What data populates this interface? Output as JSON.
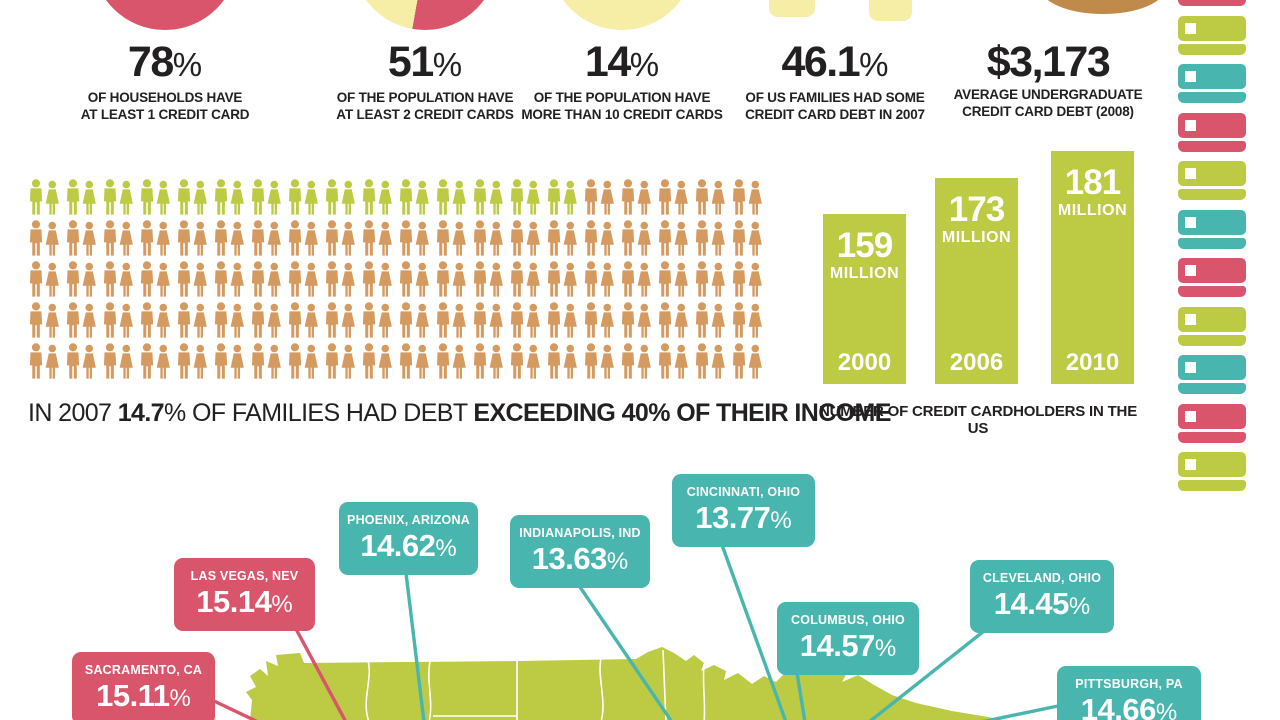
{
  "colors": {
    "red": "#d9556b",
    "teal": "#48b6af",
    "lime": "#bdca43",
    "pale_yellow": "#f6eda6",
    "orange": "#d49a60",
    "brown": "#bf8a4a",
    "ink": "#232021",
    "white": "#ffffff"
  },
  "top_stats": [
    {
      "icon": "pie-full-red",
      "value": "78%",
      "lines": [
        "OF HOUSEHOLDS HAVE",
        "AT LEAST 1 CREDIT CARD"
      ]
    },
    {
      "icon": "pie-yellow-red",
      "value": "51%",
      "lines": [
        "OF THE POPULATION HAVE",
        "AT LEAST 2 CREDIT CARDS"
      ]
    },
    {
      "icon": "pie-full-yellow",
      "value": "14%",
      "lines": [
        "OF THE POPULATION HAVE",
        "MORE THAN 10 CREDIT CARDS"
      ]
    },
    {
      "icon": "yellow-bars",
      "value": "46.1%",
      "lines": [
        "OF US FAMILIES HAD SOME",
        "CREDIT CARD DEBT IN 2007"
      ]
    },
    {
      "icon": "coin",
      "value": "$3,173",
      "lines": [
        "AVERAGE UNDERGRADUATE",
        "CREDIT CARD DEBT (2008)"
      ]
    }
  ],
  "pictogram": {
    "rows": 5,
    "per_row": 20,
    "highlight_count": 15,
    "caption_parts": [
      {
        "text": "IN 2007 ",
        "bold": false
      },
      {
        "text": "14.7",
        "bold": true
      },
      {
        "text": "% OF FAMILIES HAD DEBT ",
        "bold": false
      },
      {
        "text": "EXCEEDING 40% OF THEIR INCOME",
        "bold": true
      }
    ]
  },
  "cardholders_chart": {
    "caption": "NUMBER OF CREDIT CARDHOLDERS IN THE US",
    "bars": [
      {
        "value": "159",
        "unit": "MILLION",
        "year": "2000"
      },
      {
        "value": "173",
        "unit": "MILLION",
        "year": "2006"
      },
      {
        "value": "181",
        "unit": "MILLION",
        "year": "2010"
      }
    ]
  },
  "cards_column": [
    "red",
    "lime",
    "teal",
    "red",
    "lime",
    "teal",
    "red",
    "lime",
    "teal",
    "red",
    "lime"
  ],
  "map": {
    "cities": [
      {
        "name": "SACRAMENTO, CA",
        "rate": "15.11%",
        "color": "red"
      },
      {
        "name": "LAS VEGAS, NEV",
        "rate": "15.14%",
        "color": "red"
      },
      {
        "name": "PHOENIX, ARIZONA",
        "rate": "14.62%",
        "color": "teal"
      },
      {
        "name": "INDIANAPOLIS, IND",
        "rate": "13.63%",
        "color": "teal"
      },
      {
        "name": "CINCINNATI, OHIO",
        "rate": "13.77%",
        "color": "teal"
      },
      {
        "name": "COLUMBUS, OHIO",
        "rate": "14.57%",
        "color": "teal"
      },
      {
        "name": "CLEVELAND, OHIO",
        "rate": "14.45%",
        "color": "teal"
      },
      {
        "name": "PITTSBURGH, PA",
        "rate": "14.66%",
        "color": "teal"
      }
    ]
  },
  "chart_data": [
    {
      "type": "pie",
      "label": "78% OF HOUSEHOLDS HAVE AT LEAST 1 CREDIT CARD",
      "values": [
        78,
        22
      ],
      "colors": [
        "#d9556b",
        "#f6eda6"
      ]
    },
    {
      "type": "pie",
      "label": "51% OF THE POPULATION HAVE AT LEAST 2 CREDIT CARDS",
      "values": [
        51,
        49
      ],
      "colors": [
        "#d9556b",
        "#f6eda6"
      ]
    },
    {
      "type": "pie",
      "label": "14% OF THE POPULATION HAVE MORE THAN 10 CREDIT CARDS",
      "values": [
        14,
        86
      ],
      "colors": [
        "#f6eda6",
        "#d9556b"
      ]
    },
    {
      "type": "bar",
      "title": "NUMBER OF CREDIT CARDHOLDERS IN THE US",
      "categories": [
        "2000",
        "2006",
        "2010"
      ],
      "values": [
        159,
        173,
        181
      ],
      "unit": "MILLION",
      "ylim": [
        0,
        200
      ],
      "bar_color": "#bdca43",
      "grid": false
    },
    {
      "type": "pictogram",
      "note": "IN 2007 14.7% OF FAMILIES HAD DEBT EXCEEDING 40% OF THEIR INCOME",
      "total_icons": 100,
      "highlighted_icons": 15,
      "highlight_percent": 14.7
    },
    {
      "type": "map-callouts",
      "points": [
        {
          "city": "SACRAMENTO, CA",
          "value": 15.11
        },
        {
          "city": "LAS VEGAS, NEV",
          "value": 15.14
        },
        {
          "city": "PHOENIX, ARIZONA",
          "value": 14.62
        },
        {
          "city": "INDIANAPOLIS, IND",
          "value": 13.63
        },
        {
          "city": "CINCINNATI, OHIO",
          "value": 13.77
        },
        {
          "city": "COLUMBUS, OHIO",
          "value": 14.57
        },
        {
          "city": "CLEVELAND, OHIO",
          "value": 14.45
        },
        {
          "city": "PITTSBURGH, PA",
          "value": 14.66
        }
      ]
    }
  ]
}
